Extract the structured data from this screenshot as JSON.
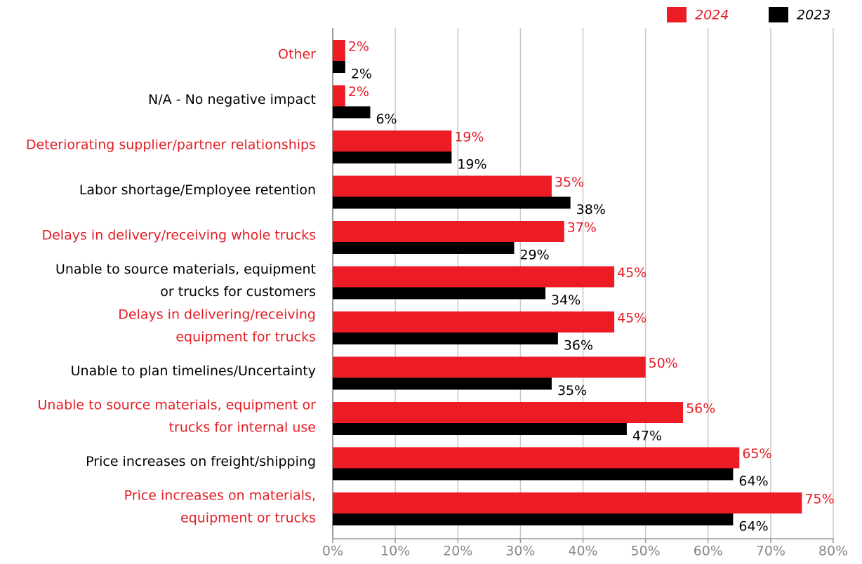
{
  "chart_data": {
    "type": "bar",
    "orientation": "horizontal",
    "categories": [
      [
        "Other"
      ],
      [
        "N/A - No negative impact"
      ],
      [
        "Deteriorating supplier/partner relationships"
      ],
      [
        "Labor shortage/Employee retention"
      ],
      [
        "Delays in delivery/receiving whole trucks"
      ],
      [
        "Unable to source materials, equipment",
        "or trucks for customers"
      ],
      [
        "Delays in delivering/receiving",
        "equipment for trucks"
      ],
      [
        "Unable to plan timelines/Uncertainty"
      ],
      [
        "Unable to source materials, equipment or",
        "trucks for internal use"
      ],
      [
        "Price increases on freight/shipping"
      ],
      [
        "Price increases on materials,",
        "equipment or trucks"
      ]
    ],
    "category_colors": [
      "#e31e26",
      "#000000",
      "#e31e26",
      "#000000",
      "#e31e26",
      "#000000",
      "#e31e26",
      "#000000",
      "#e31e26",
      "#000000",
      "#e31e26"
    ],
    "series": [
      {
        "name": "2024",
        "color": "#ed1c24",
        "values": [
          2,
          2,
          19,
          35,
          37,
          45,
          45,
          50,
          56,
          65,
          75
        ],
        "value_labels": [
          "2%",
          "2%",
          "19%",
          "35%",
          "37%",
          "45%",
          "45%",
          "50%",
          "56%",
          "65%",
          "75%"
        ]
      },
      {
        "name": "2023",
        "color": "#000000",
        "values": [
          2,
          6,
          19,
          38,
          29,
          34,
          36,
          35,
          47,
          64,
          64
        ],
        "value_labels": [
          "2%",
          "6%",
          "19%",
          "38%",
          "29%",
          "34%",
          "36%",
          "35%",
          "47%",
          "64%",
          "64%"
        ]
      }
    ],
    "xlim": [
      0,
      80
    ],
    "xticks": [
      {
        "value": 0,
        "label": "0%"
      },
      {
        "value": 10,
        "label": "10%"
      },
      {
        "value": 20,
        "label": "20%"
      },
      {
        "value": 30,
        "label": "30%"
      },
      {
        "value": 40,
        "label": "40%"
      },
      {
        "value": 50,
        "label": "50%"
      },
      {
        "value": 60,
        "label": "60%"
      },
      {
        "value": 70,
        "label": "70%"
      },
      {
        "value": 80,
        "label": "80%"
      }
    ],
    "grid": true,
    "legend": "top-right"
  }
}
